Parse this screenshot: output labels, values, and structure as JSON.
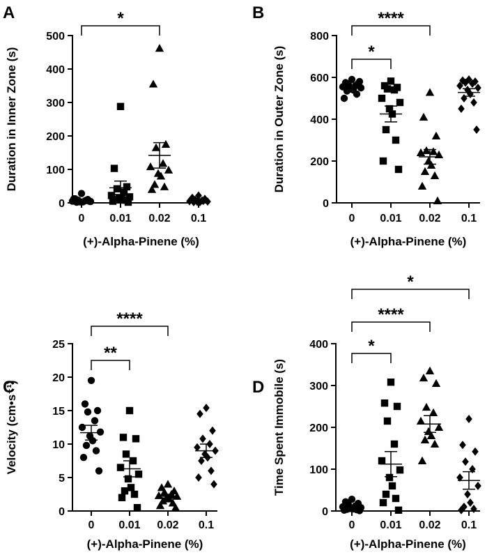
{
  "chart_data": [
    {
      "panel": "A",
      "type": "scatter",
      "xlabel": "(+)-Alpha-Pinene (%)",
      "ylabel": "Duration in Inner Zone (s)",
      "categories": [
        "0",
        "0.01",
        "0.02",
        "0.1"
      ],
      "ylim": [
        0,
        500
      ],
      "yticks": [
        0,
        100,
        200,
        300,
        400,
        500
      ],
      "series": [
        {
          "marker": "circle",
          "values": [
            28,
            12,
            10,
            8,
            6,
            5,
            4,
            3,
            3,
            2,
            8,
            12,
            5
          ],
          "mean": 8,
          "sem": 2
        },
        {
          "marker": "square",
          "values": [
            288,
            103,
            48,
            42,
            32,
            22,
            18,
            15,
            12,
            10,
            8,
            5,
            2
          ],
          "mean": 45,
          "sem": 20
        },
        {
          "marker": "triangle",
          "values": [
            462,
            355,
            175,
            165,
            118,
            108,
            98,
            88,
            80,
            55,
            48,
            40
          ],
          "mean": 142,
          "sem": 38
        },
        {
          "marker": "diamond",
          "values": [
            22,
            15,
            12,
            9,
            7,
            5,
            4,
            3,
            2,
            2,
            6,
            10
          ],
          "mean": 7,
          "sem": 2
        }
      ],
      "comparisons": [
        {
          "from": "0",
          "to": "0.02",
          "label": "*"
        }
      ]
    },
    {
      "panel": "B",
      "type": "scatter",
      "xlabel": "(+)-Alpha-Pinene (%)",
      "ylabel": "Duration in Outer Zone (s)",
      "categories": [
        "0",
        "0.01",
        "0.02",
        "0.1"
      ],
      "ylim": [
        0,
        800
      ],
      "yticks": [
        0,
        200,
        400,
        600,
        800
      ],
      "series": [
        {
          "marker": "circle",
          "values": [
            590,
            575,
            570,
            565,
            560,
            555,
            550,
            545,
            540,
            535,
            520,
            500,
            580
          ],
          "mean": 555,
          "sem": 7
        },
        {
          "marker": "square",
          "values": [
            582,
            560,
            552,
            545,
            540,
            500,
            480,
            450,
            425,
            350,
            300,
            200,
            160
          ],
          "mean": 425,
          "sem": 38
        },
        {
          "marker": "triangle",
          "values": [
            528,
            410,
            320,
            250,
            245,
            240,
            230,
            200,
            180,
            150,
            130,
            80,
            10
          ],
          "mean": 220,
          "sem": 35
        },
        {
          "marker": "diamond",
          "values": [
            590,
            585,
            580,
            575,
            570,
            560,
            550,
            540,
            520,
            500,
            480,
            450,
            350
          ],
          "mean": 528,
          "sem": 18
        }
      ],
      "comparisons": [
        {
          "from": "0",
          "to": "0.01",
          "label": "*"
        },
        {
          "from": "0",
          "to": "0.02",
          "label": "****"
        }
      ]
    },
    {
      "panel": "C",
      "type": "scatter",
      "xlabel": "(+)-Alpha-Pinene (%)",
      "ylabel": "Velocity (cm•s⁻¹)",
      "categories": [
        "0",
        "0.01",
        "0.02",
        "0.1"
      ],
      "ylim": [
        0,
        25
      ],
      "yticks": [
        0,
        5,
        10,
        15,
        20,
        25
      ],
      "series": [
        {
          "marker": "circle",
          "values": [
            19.5,
            16.0,
            15.0,
            14.8,
            13.5,
            12.5,
            11.8,
            11.2,
            10.5,
            9.8,
            9.0,
            8.0,
            6.0
          ],
          "mean": 11.7,
          "sem": 1.1
        },
        {
          "marker": "square",
          "values": [
            15.0,
            11.0,
            10.8,
            8.5,
            7.5,
            6.5,
            5.5,
            4.8,
            3.5,
            3.0,
            2.5,
            2.0,
            0.5
          ],
          "mean": 6.3,
          "sem": 1.2
        },
        {
          "marker": "triangle",
          "values": [
            4.0,
            3.5,
            3.0,
            2.8,
            2.5,
            2.3,
            2.2,
            2.0,
            1.8,
            1.5,
            1.2,
            0.8,
            0.5
          ],
          "mean": 2.2,
          "sem": 0.3
        },
        {
          "marker": "diamond",
          "values": [
            15.4,
            14.5,
            12.0,
            10.8,
            10.0,
            9.5,
            9.0,
            8.5,
            8.0,
            7.5,
            6.0,
            5.0,
            4.0
          ],
          "mean": 9.0,
          "sem": 1.0
        }
      ],
      "comparisons": [
        {
          "from": "0",
          "to": "0.01",
          "label": "**"
        },
        {
          "from": "0",
          "to": "0.02",
          "label": "****"
        }
      ]
    },
    {
      "panel": "D",
      "type": "scatter",
      "xlabel": "(+)-Alpha-Pinene (%)",
      "ylabel": "Time Spent Immobile (s)",
      "categories": [
        "0",
        "0.01",
        "0.02",
        "0.1"
      ],
      "ylim": [
        0,
        400
      ],
      "yticks": [
        0,
        100,
        200,
        300,
        400
      ],
      "series": [
        {
          "marker": "circle",
          "values": [
            28,
            22,
            18,
            15,
            12,
            10,
            8,
            6,
            5,
            4,
            3,
            2,
            1
          ],
          "mean": 10,
          "sem": 3
        },
        {
          "marker": "square",
          "values": [
            308,
            258,
            250,
            215,
            160,
            120,
            98,
            80,
            60,
            40,
            30,
            20,
            2
          ],
          "mean": 112,
          "sem": 30
        },
        {
          "marker": "triangle",
          "values": [
            335,
            318,
            305,
            248,
            235,
            215,
            200,
            190,
            180,
            170,
            160,
            120
          ],
          "mean": 208,
          "sem": 20
        },
        {
          "marker": "diamond",
          "values": [
            220,
            158,
            142,
            118,
            100,
            80,
            60,
            40,
            20,
            10,
            5,
            2
          ],
          "mean": 73,
          "sem": 21
        }
      ],
      "comparisons": [
        {
          "from": "0",
          "to": "0.01",
          "label": "*"
        },
        {
          "from": "0",
          "to": "0.02",
          "label": "****"
        },
        {
          "from": "0",
          "to": "0.1",
          "label": "*"
        }
      ]
    }
  ]
}
